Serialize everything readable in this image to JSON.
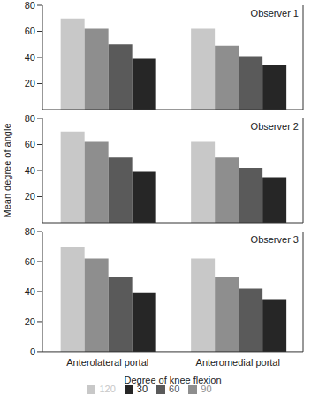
{
  "chart_data": [
    {
      "type": "bar",
      "title": "Observer 1",
      "categories": [
        null,
        null
      ],
      "tick_labels": "y",
      "series": [
        {
          "name": "120",
          "color": "#c8c8c8",
          "values": [
            70,
            62
          ]
        },
        {
          "name": "90",
          "color": "#8e8e8e",
          "values": [
            62,
            49
          ]
        },
        {
          "name": "60",
          "color": "#5a5a5a",
          "values": [
            50,
            41
          ]
        },
        {
          "name": "30",
          "color": "#262626",
          "values": [
            39,
            34
          ]
        }
      ],
      "ylim": [
        0,
        80
      ],
      "yticks": [
        0,
        20,
        40,
        60,
        80
      ],
      "grid": false
    },
    {
      "type": "bar",
      "title": "Observer 2",
      "categories": [
        null,
        null
      ],
      "tick_labels": "y",
      "ylabel": "Mean degree of angle",
      "series": [
        {
          "name": "120",
          "color": "#c8c8c8",
          "values": [
            70,
            62
          ]
        },
        {
          "name": "90",
          "color": "#8e8e8e",
          "values": [
            62,
            50
          ]
        },
        {
          "name": "60",
          "color": "#5a5a5a",
          "values": [
            50,
            42
          ]
        },
        {
          "name": "30",
          "color": "#262626",
          "values": [
            39,
            35
          ]
        }
      ],
      "ylim": [
        0,
        80
      ],
      "yticks": [
        0,
        20,
        40,
        60,
        80
      ],
      "grid": false
    },
    {
      "type": "bar",
      "title": "Observer 3",
      "categories": [
        "Anterolateral portal",
        "Anteromedial portal"
      ],
      "xlabel": "Degree of knee flexion",
      "legend": "bottom",
      "series": [
        {
          "name": "120",
          "color": "#c8c8c8",
          "values": [
            70,
            62
          ]
        },
        {
          "name": "90",
          "color": "#8e8e8e",
          "values": [
            62,
            50
          ]
        },
        {
          "name": "60",
          "color": "#5a5a5a",
          "values": [
            50,
            42
          ]
        },
        {
          "name": "30",
          "color": "#262626",
          "values": [
            39,
            35
          ]
        }
      ],
      "ylim": [
        0,
        80
      ],
      "yticks": [
        0,
        20,
        40,
        60,
        80
      ],
      "grid": false
    }
  ]
}
